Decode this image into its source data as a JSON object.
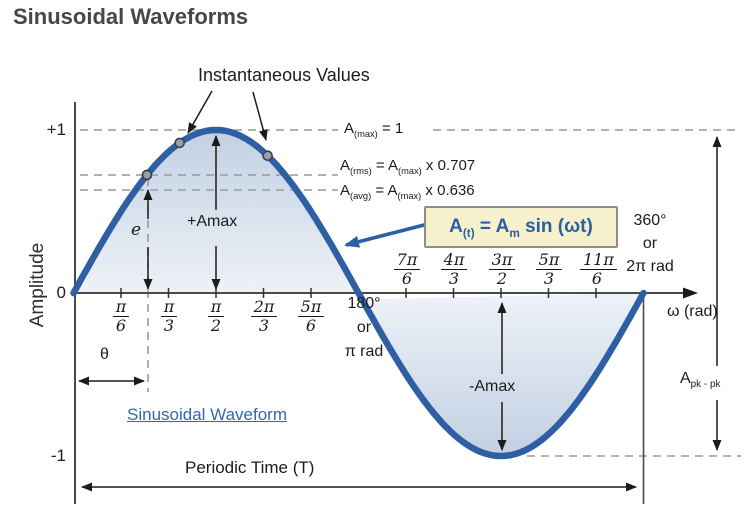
{
  "page": {
    "title": "Sinusoidal Waveforms"
  },
  "colors": {
    "curve": "#2e5fa4",
    "fill_dark": "#c2d0e2",
    "fill_light": "#eef2f8",
    "dash": "#9a9a9a",
    "formula_bg": "#f7f0cd",
    "formula_border": "#8f8f88",
    "formula_text": "#2b5fa5",
    "link": "#3269a8",
    "ink": "#1c1c1c",
    "title": "#43484d"
  },
  "annotations": {
    "instantaneous": "Instantaneous Values",
    "plus_amax": "+Amax",
    "minus_amax": "-Amax",
    "e_label": "e",
    "theta_label": "θ",
    "periodic_time": "Periodic Time (T)",
    "waveform_link": "Sinusoidal Waveform"
  },
  "equations": {
    "amax": {
      "a": "A",
      "sub": "(max)",
      "tail": " = 1"
    },
    "arms": {
      "a": "A",
      "sub": "(rms)",
      "mid": " = ",
      "a2": "A",
      "sub2": "(max)",
      "tail": " x 0.707"
    },
    "aavg": {
      "a": "A",
      "sub": "(avg)",
      "mid": " = ",
      "a2": "A",
      "sub2": "(max)",
      "tail": " x 0.636"
    },
    "formula": {
      "a": "A",
      "sub": "(t)",
      "mid": " = ",
      "a2": "A",
      "sub2": "m",
      "tail": " sin (ωt)"
    },
    "apkpk": {
      "a": "A",
      "sub": "pk - pk"
    }
  },
  "axis": {
    "y_plus1": "+1",
    "y_zero": "0",
    "y_minus1": "-1",
    "y_label": "Amplitude",
    "x_label": "ω (rad)",
    "deg180": [
      "180°",
      "or",
      "π rad"
    ],
    "deg360": [
      "360°",
      "or",
      "2π rad"
    ],
    "ticks_left": [
      {
        "n": "π",
        "d": "6"
      },
      {
        "n": "π",
        "d": "3"
      },
      {
        "n": "π",
        "d": "2"
      },
      {
        "n": "2π",
        "d": "3"
      },
      {
        "n": "5π",
        "d": "6"
      }
    ],
    "ticks_right": [
      {
        "n": "7π",
        "d": "6"
      },
      {
        "n": "4π",
        "d": "3"
      },
      {
        "n": "3π",
        "d": "2"
      },
      {
        "n": "5π",
        "d": "3"
      },
      {
        "n": "11π",
        "d": "6"
      }
    ]
  },
  "chart_data": {
    "type": "line",
    "title": "Sinusoidal Waveform",
    "equation": "A(t) = Am sin (ωt)",
    "xlabel": "ω (rad)",
    "ylabel": "Amplitude",
    "x_range_rad": [
      0,
      6.2832
    ],
    "ylim": [
      -1,
      1
    ],
    "y_ticks": [
      "+1",
      "0",
      "-1"
    ],
    "x_ticks": [
      "π/6",
      "π/3",
      "π/2",
      "2π/3",
      "5π/6",
      "π",
      "7π/6",
      "4π/3",
      "3π/2",
      "5π/3",
      "11π/6",
      "2π"
    ],
    "amplitude_peak": 1,
    "peak_value_label": "A(max) = 1",
    "rms_value": "A(max) x 0.707",
    "avg_value": "A(max) x 0.636",
    "peak_at_rad": 1.5708,
    "trough_at_rad": 4.7124,
    "period_label": "Periodic Time (T)",
    "peak_to_peak_label": "Apk - pk",
    "instantaneous_points_rad": [
      0.81,
      1.17,
      2.14
    ],
    "grid": false,
    "legend": false
  }
}
